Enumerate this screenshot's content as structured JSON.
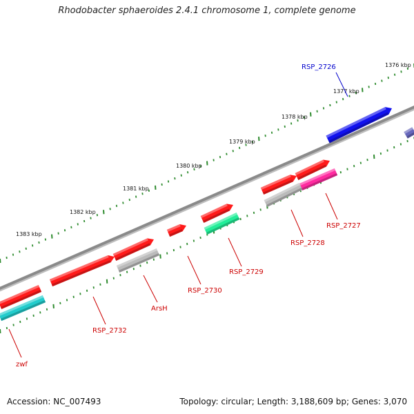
{
  "title": "Rhodobacter sphaeroides 2.4.1 chromosome 1, complete genome",
  "footer": {
    "accession": "Accession: NC_007493",
    "topology": "Topology: circular; Length: 3,188,609 bp; Genes: 3,070"
  },
  "colors": {
    "backbone": "#808080",
    "tick": "#2e8b2e",
    "label_default": "#cc0000",
    "label_highlight": "#0000cc",
    "gene_red": "#ff1a1a",
    "gene_cyan": "#22cccc",
    "gene_gray": "#bbbbbb",
    "gene_blue": "#1111ee",
    "gene_pink": "#ff2aa0",
    "gene_green": "#22ee99",
    "gene_purple": "#6666bb"
  },
  "scale_labels": [
    "1376 kbp",
    "1377 kbp",
    "1378 kbp",
    "1379 kbp",
    "1380 kbp",
    "1381 kbp",
    "1382 kbp",
    "1383 kbp"
  ],
  "genes": [
    {
      "name": "RSP_2726",
      "color_key": "label_highlight"
    },
    {
      "name": "RSP_2727",
      "color_key": "label_default"
    },
    {
      "name": "RSP_2728",
      "color_key": "label_default"
    },
    {
      "name": "RSP_2729",
      "color_key": "label_default"
    },
    {
      "name": "RSP_2730",
      "color_key": "label_default"
    },
    {
      "name": "ArsH",
      "color_key": "label_default"
    },
    {
      "name": "RSP_2732",
      "color_key": "label_default"
    },
    {
      "name": "zwf",
      "color_key": "label_default"
    }
  ]
}
